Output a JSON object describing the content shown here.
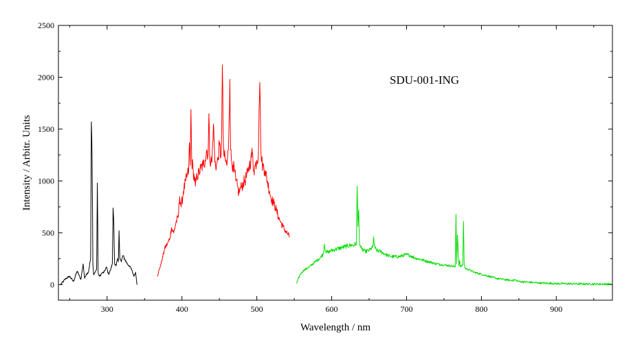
{
  "chart_data": {
    "type": "line",
    "title": "",
    "xlabel": "Wavelength / nm",
    "ylabel": "Intensity / Arbitr. Units",
    "xlim": [
      235,
      975
    ],
    "ylim": [
      -150,
      2500
    ],
    "xticks": [
      300,
      400,
      500,
      600,
      700,
      800,
      900
    ],
    "yticks": [
      0,
      500,
      1000,
      1500,
      2000,
      2500
    ],
    "grid": false,
    "legend": "none",
    "annotation": "SDU-001-ING",
    "series": [
      {
        "color": "#000000",
        "x": [
          238,
          245,
          250,
          255,
          260,
          265,
          268,
          270,
          272,
          275,
          278,
          279,
          280,
          281,
          282,
          284,
          286,
          287,
          288,
          289,
          290,
          293,
          296,
          299,
          302,
          305,
          307,
          308,
          309,
          310,
          312,
          314,
          315,
          316,
          317,
          319,
          321,
          324,
          327,
          330,
          333,
          336,
          338,
          340
        ],
        "y": [
          0,
          60,
          80,
          30,
          130,
          50,
          200,
          60,
          100,
          120,
          250,
          1570,
          1180,
          200,
          100,
          120,
          150,
          980,
          120,
          90,
          80,
          110,
          120,
          170,
          100,
          150,
          200,
          740,
          600,
          200,
          180,
          250,
          220,
          520,
          260,
          220,
          280,
          240,
          200,
          180,
          140,
          80,
          120,
          0
        ]
      },
      {
        "color": "#ff0000",
        "x": [
          367,
          372,
          377,
          381,
          384,
          386,
          389,
          392,
          395,
          397,
          399,
          402,
          405,
          407,
          409,
          410,
          411,
          412,
          413,
          415,
          418,
          420,
          423,
          425,
          428,
          431,
          433,
          435,
          436,
          437,
          440,
          442,
          444,
          446,
          448,
          450,
          452,
          453,
          454,
          455,
          456,
          458,
          460,
          462,
          464,
          465,
          466,
          468,
          470,
          472,
          474,
          476,
          478,
          480,
          482,
          485,
          488,
          490,
          492,
          494,
          496,
          498,
          500,
          502,
          503,
          504,
          505,
          506,
          508,
          511,
          514,
          517,
          520,
          523,
          526,
          529,
          532,
          535,
          538,
          541,
          544
        ],
        "y": [
          80,
          200,
          350,
          400,
          450,
          550,
          500,
          600,
          650,
          850,
          750,
          900,
          1000,
          1050,
          1100,
          1370,
          1150,
          1690,
          1200,
          1100,
          950,
          1050,
          1080,
          1120,
          1150,
          1200,
          1300,
          1250,
          1650,
          1220,
          1180,
          1550,
          1180,
          1150,
          1200,
          1350,
          1230,
          1450,
          2120,
          1450,
          1250,
          1200,
          1150,
          1300,
          1980,
          1300,
          1200,
          1150,
          1100,
          1000,
          950,
          880,
          930,
          950,
          980,
          1020,
          1080,
          1150,
          1200,
          1280,
          1100,
          1150,
          1200,
          1250,
          1700,
          1950,
          1500,
          1200,
          1150,
          1100,
          1000,
          900,
          820,
          780,
          720,
          650,
          600,
          560,
          520,
          490,
          460
        ]
      },
      {
        "color": "#00dd00",
        "x": [
          553,
          558,
          563,
          570,
          578,
          585,
          589,
          590,
          592,
          595,
          600,
          605,
          610,
          615,
          620,
          625,
          630,
          633,
          634,
          635,
          636,
          637,
          638,
          640,
          645,
          650,
          655,
          656,
          657,
          658,
          660,
          665,
          670,
          675,
          680,
          690,
          700,
          705,
          710,
          720,
          730,
          740,
          750,
          760,
          765,
          766,
          767,
          768,
          770,
          771,
          772,
          775,
          776,
          777,
          778,
          780,
          785,
          790,
          800,
          810,
          820,
          830,
          840,
          845,
          850,
          860,
          870,
          880,
          900,
          920,
          940,
          960,
          973
        ],
        "y": [
          10,
          100,
          140,
          170,
          220,
          260,
          300,
          390,
          320,
          310,
          330,
          340,
          350,
          360,
          370,
          380,
          380,
          400,
          950,
          560,
          720,
          420,
          380,
          340,
          320,
          330,
          360,
          460,
          380,
          350,
          330,
          320,
          300,
          280,
          270,
          270,
          290,
          280,
          260,
          240,
          220,
          200,
          190,
          180,
          170,
          680,
          200,
          480,
          180,
          230,
          170,
          190,
          610,
          200,
          160,
          150,
          140,
          120,
          100,
          80,
          60,
          50,
          40,
          45,
          30,
          25,
          20,
          15,
          10,
          8,
          6,
          5,
          5
        ]
      }
    ]
  }
}
